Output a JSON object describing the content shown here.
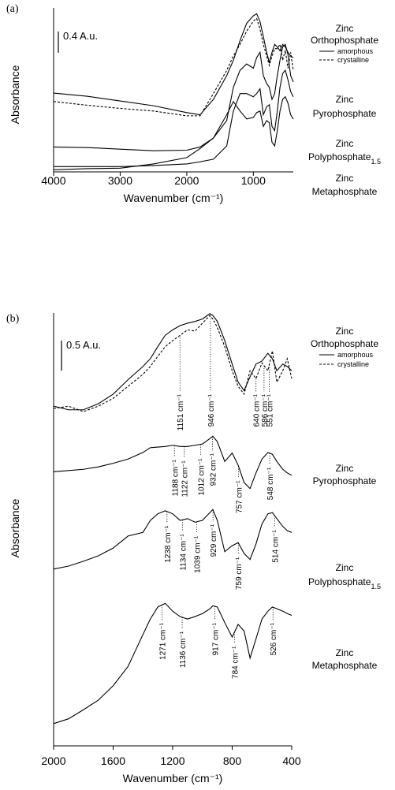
{
  "chart_data": [
    {
      "type": "line",
      "panel": "(a)",
      "x_label": "Wavenumber (cm⁻¹)",
      "y_label": "Absorbance",
      "xlim": [
        4000,
        400
      ],
      "xticks": [
        4000,
        3000,
        2000,
        1000
      ],
      "ylim": [
        0,
        3.1
      ],
      "scale_bar": {
        "value": 0.4,
        "label": "0.4 A.u."
      },
      "x": [
        4000,
        3500,
        3000,
        2500,
        2000,
        1800,
        1600,
        1400,
        1300,
        1200,
        1100,
        1000,
        950,
        900,
        850,
        800,
        760,
        720,
        680,
        640,
        600,
        560,
        520,
        480,
        440,
        400
      ],
      "series": [
        {
          "name": "amorphous",
          "color": "#000000",
          "label": {
            "line1": "Zinc",
            "line2": "Orthophosphate"
          },
          "values": [
            1.49,
            1.43,
            1.34,
            1.25,
            1.12,
            1.08,
            1.37,
            1.82,
            2.11,
            2.48,
            2.81,
            2.95,
            2.99,
            2.84,
            2.56,
            2.26,
            2.07,
            2.26,
            2.41,
            2.36,
            2.29,
            2.41,
            2.36,
            2.26,
            2.19,
            2.16
          ]
        },
        {
          "name": "crystalline",
          "color": "#000000",
          "dash": true,
          "values": [
            1.33,
            1.26,
            1.2,
            1.15,
            1.06,
            1.06,
            1.48,
            1.92,
            2.19,
            2.41,
            2.66,
            2.85,
            2.9,
            2.7,
            2.41,
            2.19,
            2.01,
            2.19,
            2.33,
            2.33,
            2.41,
            2.11,
            2.3,
            1.96,
            2.26,
            1.92
          ]
        },
        {
          "color": "#000000",
          "label": {
            "line1": "Zinc",
            "line2": "Pyrophosphate"
          },
          "values": [
            0.47,
            0.46,
            0.43,
            0.4,
            0.41,
            0.47,
            0.64,
            0.97,
            1.6,
            1.92,
            2.04,
            1.96,
            2.16,
            2.26,
            1.82,
            1.67,
            1.6,
            1.37,
            1.48,
            1.82,
            2.11,
            2.36,
            2.41,
            2.22,
            1.82,
            1.7
          ]
        },
        {
          "color": "#000000",
          "label": {
            "line1": "Zinc",
            "line2": "Polyphosphate",
            "sub": "1.5"
          },
          "values": [
            0.1,
            0.1,
            0.1,
            0.12,
            0.15,
            0.19,
            0.24,
            0.49,
            1.15,
            1.48,
            1.48,
            1.42,
            1.48,
            1.57,
            1.08,
            1.23,
            1.27,
            0.86,
            0.78,
            1.15,
            1.6,
            1.86,
            1.92,
            1.74,
            1.52,
            1.42
          ]
        },
        {
          "color": "#000000",
          "label": {
            "line1": "Zinc",
            "line2": "Metaphosphate"
          },
          "values": [
            0.04,
            0.06,
            0.07,
            0.15,
            0.27,
            0.44,
            0.64,
            1.08,
            1.33,
            1.15,
            1.0,
            1.03,
            1.12,
            1.15,
            0.86,
            0.97,
            0.93,
            0.56,
            0.49,
            0.78,
            1.15,
            1.37,
            1.42,
            1.3,
            1.08,
            1.0
          ]
        }
      ]
    },
    {
      "type": "line",
      "panel": "(b)",
      "x_label": "Wavenumber (cm⁻¹)",
      "y_label": "Absorbance",
      "xlim": [
        2000,
        400
      ],
      "xticks": [
        2000,
        1600,
        1200,
        800,
        400
      ],
      "ylim": [
        0,
        7.2
      ],
      "scale_bar": {
        "value": 0.5,
        "label": "0.5 A.u."
      },
      "x": [
        2000,
        1900,
        1800,
        1700,
        1600,
        1500,
        1400,
        1350,
        1300,
        1250,
        1200,
        1150,
        1100,
        1050,
        1000,
        950,
        930,
        900,
        850,
        800,
        760,
        720,
        680,
        640,
        600,
        560,
        530,
        500,
        460,
        430,
        400
      ],
      "series": [
        {
          "name": "amorphous",
          "color": "#000000",
          "label": {
            "line1": "Zinc",
            "line2": "Orthophosphate"
          },
          "values": [
            5.65,
            5.59,
            5.59,
            5.69,
            5.85,
            6.09,
            6.31,
            6.44,
            6.64,
            6.83,
            6.92,
            6.99,
            7.03,
            7.06,
            7.1,
            7.19,
            7.16,
            7.06,
            6.74,
            6.35,
            6.05,
            5.91,
            6.14,
            6.35,
            6.4,
            6.53,
            6.44,
            6.24,
            6.35,
            6.31,
            6.24
          ]
        },
        {
          "name": "crystalline",
          "color": "#000000",
          "dash": true,
          "values": [
            5.61,
            5.65,
            5.56,
            5.65,
            5.78,
            5.98,
            6.18,
            6.31,
            6.48,
            6.64,
            6.74,
            6.83,
            6.92,
            6.9,
            7.03,
            7.16,
            7.1,
            6.96,
            6.64,
            6.24,
            5.98,
            5.85,
            6.24,
            6.11,
            6.37,
            6.24,
            6.57,
            6.05,
            6.24,
            6.44,
            6.11
          ],
          "annotations": [
            {
              "x": 1151,
              "text": "1151 cm⁻¹"
            },
            {
              "x": 946,
              "text": "946 cm⁻¹"
            },
            {
              "x": 640,
              "text": "640 cm⁻¹"
            },
            {
              "x": 586,
              "text": "586 cm⁻¹"
            },
            {
              "x": 551,
              "text": "551 cm⁻¹"
            }
          ]
        },
        {
          "color": "#000000",
          "label": {
            "line1": "Zinc",
            "line2": "Pyrophosphate"
          },
          "values": [
            4.56,
            4.58,
            4.6,
            4.64,
            4.7,
            4.77,
            4.88,
            4.96,
            4.97,
            4.98,
            5.0,
            4.98,
            4.98,
            5.0,
            5.02,
            5.11,
            5.15,
            5.06,
            4.73,
            4.87,
            4.67,
            4.38,
            4.28,
            4.54,
            4.77,
            4.88,
            4.85,
            4.73,
            4.6,
            4.54,
            4.5
          ],
          "annotations": [
            {
              "x": 1188,
              "text": "1188 cm⁻¹"
            },
            {
              "x": 1122,
              "text": "1122 cm⁻¹"
            },
            {
              "x": 1012,
              "text": "1012 cm⁻¹"
            },
            {
              "x": 932,
              "text": "932 cm⁻¹"
            },
            {
              "x": 757,
              "text": "757 cm⁻¹"
            },
            {
              "x": 548,
              "text": "548 cm⁻¹"
            }
          ]
        },
        {
          "color": "#000000",
          "label": {
            "line1": "Zinc",
            "line2": "Polyphosphate",
            "sub": "1.5"
          },
          "values": [
            2.94,
            2.99,
            3.07,
            3.16,
            3.29,
            3.49,
            3.55,
            3.75,
            3.86,
            3.91,
            3.86,
            3.75,
            3.78,
            3.72,
            3.75,
            3.88,
            3.93,
            3.75,
            3.23,
            3.33,
            3.38,
            3.2,
            3.1,
            3.36,
            3.69,
            3.86,
            3.88,
            3.78,
            3.65,
            3.58,
            3.55
          ],
          "annotations": [
            {
              "x": 1238,
              "text": "1238 cm⁻¹"
            },
            {
              "x": 1134,
              "text": "1134 cm⁻¹"
            },
            {
              "x": 1039,
              "text": "1039 cm⁻¹"
            },
            {
              "x": 929,
              "text": "929 cm⁻¹"
            },
            {
              "x": 759,
              "text": "759 cm⁻¹"
            },
            {
              "x": 514,
              "text": "514 cm⁻¹"
            }
          ]
        },
        {
          "color": "#000000",
          "label": {
            "line1": "Zinc",
            "line2": "Metaphosphate"
          },
          "values": [
            0.37,
            0.45,
            0.6,
            0.76,
            1.0,
            1.32,
            1.85,
            2.11,
            2.31,
            2.37,
            2.24,
            2.15,
            2.11,
            2.15,
            2.2,
            2.28,
            2.33,
            2.31,
            2.05,
            1.81,
            2.02,
            1.91,
            1.46,
            1.78,
            2.11,
            2.24,
            2.31,
            2.28,
            2.24,
            2.2,
            2.17
          ],
          "annotations": [
            {
              "x": 1271,
              "text": "1271 cm⁻¹"
            },
            {
              "x": 1136,
              "text": "1136 cm⁻¹"
            },
            {
              "x": 917,
              "text": "917 cm⁻¹"
            },
            {
              "x": 784,
              "text": "784 cm⁻¹"
            },
            {
              "x": 526,
              "text": "526 cm⁻¹"
            }
          ]
        }
      ]
    }
  ]
}
